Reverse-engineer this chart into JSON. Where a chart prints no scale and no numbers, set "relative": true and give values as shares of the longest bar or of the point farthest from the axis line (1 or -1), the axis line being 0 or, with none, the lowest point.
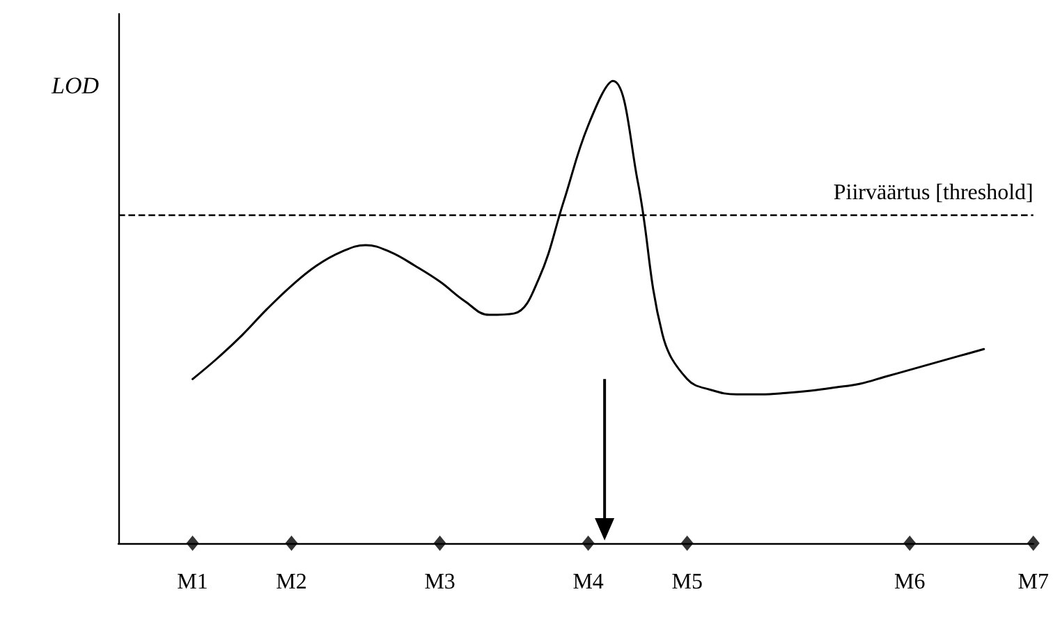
{
  "chart_data": {
    "type": "line",
    "relative": true,
    "ylabel": "LOD",
    "categories": [
      null,
      null,
      null,
      "M1",
      null,
      null,
      null,
      "M2",
      null,
      null,
      null,
      null,
      null,
      "M3",
      null,
      null,
      null,
      null,
      null,
      "M4",
      null,
      null,
      null,
      "M5",
      null,
      null,
      null,
      null,
      null,
      null,
      null,
      null,
      "M6",
      null,
      null,
      null,
      null,
      "M7"
    ],
    "series": [
      {
        "color": "#000000",
        "marker": "none",
        "line_style": "solid",
        "values": [
          null,
          null,
          null,
          0.355,
          0.4,
          0.45,
          0.506,
          0.557,
          0.6,
          0.63,
          0.645,
          0.63,
          0.6,
          0.566,
          0.524,
          0.494,
          0.497,
          0.572,
          0.738,
          0.904,
          1,
          0.783,
          0.452,
          0.355,
          0.331,
          0.322,
          0.322,
          0.325,
          0.33,
          0.337,
          0.345,
          0.36,
          0.375,
          0.39,
          0.405,
          0.42,
          null,
          null
        ]
      },
      {
        "type": "scatter",
        "color": "#000000",
        "marker": "diamond",
        "x": [
          "M1",
          "M2",
          "M3",
          "M4",
          "M5",
          "M6",
          "M7"
        ],
        "values": [
          0,
          0,
          0,
          0,
          0,
          0,
          0
        ]
      }
    ],
    "ref_lines": [
      {
        "axis": "y",
        "value": 0.714,
        "label": "Piirväärtus [threshold]",
        "color": "#000000",
        "line_style": "dashed"
      }
    ],
    "grid": false
  }
}
